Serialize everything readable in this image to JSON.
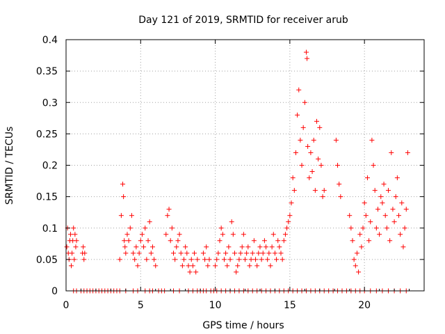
{
  "chart_data": {
    "type": "scatter",
    "title": "Day 121 of 2019, SRMTID for receiver arub",
    "xlabel": "GPS time / hours",
    "ylabel": "SRMTID / TECUs",
    "xlim": [
      0,
      24
    ],
    "ylim": [
      0,
      0.4
    ],
    "xticks": [
      0,
      5,
      10,
      15,
      20
    ],
    "yticks": [
      0,
      0.05,
      0.1,
      0.15,
      0.2,
      0.25,
      0.3,
      0.35,
      0.4
    ],
    "xtick_labels": [
      "0",
      "5",
      "10",
      "15",
      "20"
    ],
    "ytick_labels": [
      "0",
      "0.05",
      "0.1",
      "0.15",
      "0.2",
      "0.25",
      "0.3",
      "0.35",
      "0.4"
    ],
    "grid": true,
    "marker": "+",
    "color": "#ff0000",
    "series": [
      {
        "name": "SRMTID",
        "x": [
          0.05,
          0.1,
          0.15,
          0.2,
          0.25,
          0.3,
          0.35,
          0.4,
          0.45,
          0.5,
          0.55,
          0.6,
          0.65,
          0.7,
          1.1,
          1.15,
          1.2,
          1.25,
          3.6,
          3.7,
          3.8,
          3.85,
          3.9,
          3.95,
          4.0,
          4.1,
          4.2,
          4.3,
          4.4,
          4.5,
          4.6,
          4.7,
          4.8,
          4.9,
          5.0,
          5.1,
          5.2,
          5.3,
          5.4,
          5.5,
          5.6,
          5.7,
          5.8,
          5.9,
          6.0,
          6.7,
          6.8,
          6.9,
          7.0,
          7.1,
          7.2,
          7.3,
          7.4,
          7.5,
          7.6,
          7.7,
          7.8,
          7.9,
          8.0,
          8.1,
          8.2,
          8.3,
          8.4,
          8.5,
          8.6,
          8.7,
          8.8,
          9.2,
          9.3,
          9.4,
          9.5,
          9.6,
          10.0,
          10.1,
          10.2,
          10.3,
          10.4,
          10.5,
          10.6,
          10.7,
          10.8,
          10.9,
          11.0,
          11.1,
          11.2,
          11.3,
          11.4,
          11.5,
          11.6,
          11.7,
          11.8,
          11.9,
          12.0,
          12.1,
          12.2,
          12.3,
          12.4,
          12.5,
          12.6,
          12.7,
          12.8,
          12.9,
          13.0,
          13.1,
          13.2,
          13.3,
          13.4,
          13.5,
          13.6,
          13.7,
          13.8,
          13.9,
          14.0,
          14.1,
          14.2,
          14.3,
          14.4,
          14.5,
          14.6,
          14.7,
          14.8,
          14.9,
          15.0,
          15.1,
          15.2,
          15.3,
          15.4,
          15.5,
          15.6,
          15.7,
          15.8,
          15.9,
          16.0,
          16.1,
          16.15,
          16.2,
          16.3,
          16.4,
          16.5,
          16.6,
          16.7,
          16.8,
          16.9,
          17.0,
          17.1,
          17.2,
          17.3,
          18.1,
          18.2,
          18.3,
          18.4,
          19.0,
          19.1,
          19.2,
          19.3,
          19.4,
          19.5,
          19.6,
          19.7,
          19.8,
          19.9,
          20.0,
          20.1,
          20.2,
          20.3,
          20.4,
          20.5,
          20.6,
          20.7,
          20.8,
          20.9,
          21.0,
          21.1,
          21.2,
          21.3,
          21.4,
          21.5,
          21.6,
          21.7,
          21.8,
          21.9,
          22.0,
          22.1,
          22.2,
          22.3,
          22.4,
          22.5,
          22.6,
          22.7,
          22.8,
          22.9
        ],
        "y": [
          0.07,
          0.1,
          0.06,
          0.05,
          0.08,
          0.09,
          0.04,
          0.06,
          0.08,
          0.1,
          0.05,
          0.09,
          0.07,
          0.08,
          0.06,
          0.07,
          0.05,
          0.06,
          0.05,
          0.12,
          0.17,
          0.15,
          0.08,
          0.07,
          0.06,
          0.09,
          0.08,
          0.1,
          0.12,
          0.06,
          0.05,
          0.07,
          0.04,
          0.06,
          0.08,
          0.09,
          0.07,
          0.1,
          0.05,
          0.08,
          0.11,
          0.06,
          0.07,
          0.05,
          0.04,
          0.09,
          0.12,
          0.13,
          0.08,
          0.1,
          0.06,
          0.05,
          0.07,
          0.08,
          0.09,
          0.06,
          0.04,
          0.05,
          0.07,
          0.06,
          0.04,
          0.03,
          0.05,
          0.04,
          0.06,
          0.03,
          0.05,
          0.06,
          0.05,
          0.07,
          0.04,
          0.05,
          0.04,
          0.05,
          0.06,
          0.08,
          0.1,
          0.09,
          0.05,
          0.06,
          0.04,
          0.07,
          0.05,
          0.11,
          0.09,
          0.06,
          0.03,
          0.04,
          0.05,
          0.06,
          0.07,
          0.09,
          0.05,
          0.06,
          0.07,
          0.04,
          0.05,
          0.06,
          0.08,
          0.05,
          0.04,
          0.06,
          0.07,
          0.05,
          0.06,
          0.08,
          0.07,
          0.05,
          0.06,
          0.04,
          0.07,
          0.09,
          0.06,
          0.05,
          0.08,
          0.07,
          0.06,
          0.05,
          0.08,
          0.09,
          0.1,
          0.11,
          0.12,
          0.14,
          0.18,
          0.16,
          0.22,
          0.28,
          0.32,
          0.24,
          0.2,
          0.26,
          0.3,
          0.38,
          0.37,
          0.23,
          0.18,
          0.22,
          0.19,
          0.24,
          0.16,
          0.27,
          0.21,
          0.26,
          0.2,
          0.15,
          0.16,
          0.24,
          0.2,
          0.17,
          0.15,
          0.12,
          0.1,
          0.08,
          0.05,
          0.04,
          0.06,
          0.03,
          0.09,
          0.07,
          0.1,
          0.14,
          0.12,
          0.18,
          0.08,
          0.11,
          0.24,
          0.2,
          0.16,
          0.1,
          0.13,
          0.09,
          0.15,
          0.14,
          0.17,
          0.12,
          0.1,
          0.16,
          0.08,
          0.22,
          0.13,
          0.11,
          0.15,
          0.18,
          0.12,
          0.09,
          0.14,
          0.07,
          0.1,
          0.13,
          0.22
        ]
      }
    ],
    "zero_band_x": [
      0.5,
      0.7,
      1.0,
      1.2,
      1.4,
      1.6,
      1.8,
      2.0,
      2.2,
      2.4,
      2.6,
      2.8,
      3.0,
      3.2,
      3.4,
      3.6,
      4.0,
      4.5,
      4.8,
      5.3,
      5.6,
      5.8,
      6.2,
      6.4,
      6.6,
      7.2,
      7.6,
      8.2,
      8.5,
      8.8,
      9.0,
      9.2,
      9.4,
      9.7,
      9.9,
      10.1,
      10.4,
      10.7,
      11.0,
      11.3,
      11.6,
      11.9,
      12.2,
      12.5,
      12.8,
      13.1,
      13.4,
      13.7,
      14.0,
      14.3,
      14.6,
      14.9,
      15.2,
      15.5,
      15.8,
      16.1,
      16.4,
      16.7,
      17.0,
      17.3,
      17.6,
      17.9,
      18.2,
      18.5,
      18.8,
      19.1,
      19.4,
      19.7,
      20.0,
      20.4,
      20.8,
      21.2,
      21.6,
      22.0,
      22.4,
      22.8
    ]
  }
}
